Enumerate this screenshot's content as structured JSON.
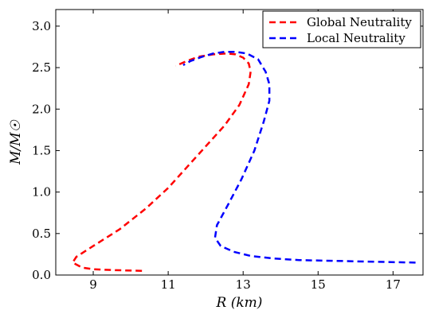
{
  "chart_data": {
    "type": "line",
    "xlabel": "R (km)",
    "ylabel": "M/M☉",
    "xlim": [
      8.0,
      17.8
    ],
    "ylim": [
      0.0,
      3.2
    ],
    "xticks": [
      9,
      11,
      13,
      15,
      17
    ],
    "yticks": [
      0.0,
      0.5,
      1.0,
      1.5,
      2.0,
      2.5,
      3.0
    ],
    "grid": false,
    "legend_position": "top-right",
    "series": [
      {
        "name": "Global Neutrality",
        "color": "#ff0000",
        "style": "dashed",
        "x": [
          10.3,
          9.5,
          9.0,
          8.7,
          8.45,
          8.55,
          9.0,
          9.7,
          10.4,
          11.0,
          11.5,
          12.0,
          12.5,
          12.9,
          13.15,
          13.2,
          13.15,
          13.0,
          12.8,
          12.55,
          12.2,
          11.8,
          11.5,
          11.2
        ],
        "y": [
          0.05,
          0.06,
          0.07,
          0.09,
          0.15,
          0.22,
          0.35,
          0.55,
          0.8,
          1.05,
          1.3,
          1.55,
          1.8,
          2.05,
          2.3,
          2.45,
          2.55,
          2.62,
          2.66,
          2.67,
          2.66,
          2.63,
          2.58,
          2.52
        ]
      },
      {
        "name": "Local Neutrality",
        "color": "#0000ff",
        "style": "dashed",
        "x": [
          17.6,
          16.5,
          15.5,
          14.5,
          13.8,
          13.2,
          12.75,
          12.4,
          12.25,
          12.3,
          12.6,
          12.95,
          13.3,
          13.55,
          13.7,
          13.7,
          13.6,
          13.4,
          13.1,
          12.8,
          12.5,
          12.2,
          11.9,
          11.6,
          11.4
        ],
        "y": [
          0.15,
          0.16,
          0.17,
          0.18,
          0.2,
          0.23,
          0.28,
          0.35,
          0.45,
          0.6,
          0.85,
          1.15,
          1.5,
          1.85,
          2.1,
          2.3,
          2.45,
          2.6,
          2.67,
          2.69,
          2.69,
          2.67,
          2.63,
          2.58,
          2.53
        ]
      }
    ]
  }
}
